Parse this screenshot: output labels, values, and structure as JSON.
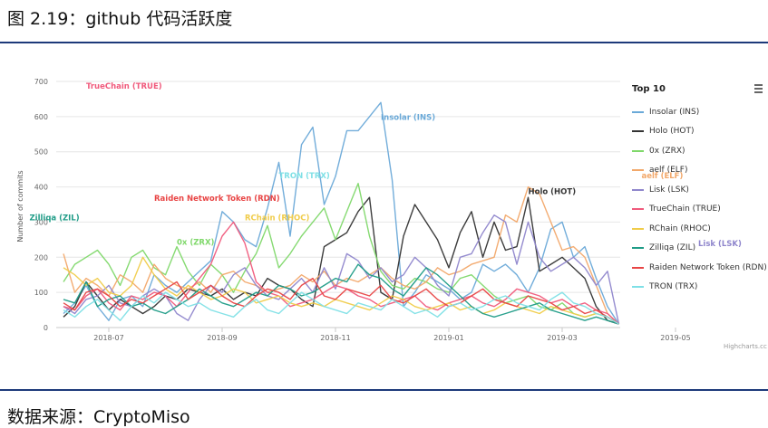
{
  "figure": {
    "title": "图 2.19：github 代码活跃度",
    "source": "数据来源：CryptoMiso",
    "credit": "Highcharts.cc"
  },
  "legend": {
    "title": "Top 10"
  },
  "chart_data": {
    "type": "line",
    "title": "",
    "xlabel": "",
    "ylabel": "Number of commits",
    "ylim": [
      0,
      700
    ],
    "yticks": [
      0,
      100,
      200,
      300,
      400,
      500,
      600,
      700
    ],
    "xlim": [
      0,
      49
    ],
    "xticks": [
      {
        "x": 4,
        "label": "2018-07"
      },
      {
        "x": 14,
        "label": "2018-09"
      },
      {
        "x": 24,
        "label": "2018-11"
      },
      {
        "x": 34,
        "label": "2019-01"
      },
      {
        "x": 44,
        "label": "2019-03"
      },
      {
        "x": 54,
        "label": "2019-05"
      }
    ],
    "grid": true,
    "legend_position": "right",
    "series": [
      {
        "name": "Insolar (INS)",
        "color": "#6aa9d8",
        "label": {
          "text": "Insolar (INS)",
          "at": [
            28,
            590
          ]
        },
        "values": [
          40,
          70,
          120,
          60,
          20,
          80,
          90,
          60,
          150,
          120,
          100,
          130,
          160,
          190,
          330,
          300,
          250,
          230,
          340,
          470,
          260,
          520,
          570,
          350,
          430,
          560,
          560,
          600,
          640,
          420,
          60,
          100,
          150,
          130,
          110,
          80,
          100,
          180,
          160,
          180,
          150,
          100,
          170,
          280,
          300,
          200,
          230,
          140,
          60,
          10
        ]
      },
      {
        "name": "Holo (HOT)",
        "color": "#333333",
        "label": {
          "text": "Holo (HOT)",
          "at": [
            41,
            380
          ]
        },
        "values": [
          30,
          60,
          130,
          90,
          50,
          80,
          60,
          40,
          60,
          90,
          80,
          110,
          100,
          90,
          110,
          80,
          100,
          90,
          140,
          120,
          110,
          80,
          60,
          230,
          250,
          270,
          330,
          370,
          100,
          80,
          260,
          350,
          300,
          250,
          170,
          270,
          330,
          200,
          300,
          220,
          230,
          370,
          160,
          180,
          200,
          170,
          140,
          60,
          20,
          10
        ]
      },
      {
        "name": "0x (ZRX)",
        "color": "#7fd86a",
        "label": {
          "text": "0x (ZRX)",
          "at": [
            10,
            235
          ]
        },
        "values": [
          130,
          180,
          200,
          220,
          180,
          120,
          200,
          220,
          170,
          150,
          230,
          160,
          120,
          180,
          150,
          100,
          160,
          210,
          290,
          170,
          210,
          260,
          300,
          340,
          250,
          330,
          410,
          260,
          160,
          120,
          110,
          140,
          130,
          110,
          100,
          140,
          150,
          120,
          90,
          70,
          80,
          90,
          60,
          50,
          70,
          40,
          30,
          40,
          30,
          10
        ]
      },
      {
        "name": "aelf (ELF)",
        "color": "#f2a86a",
        "label": {
          "text": "aelf (ELF)",
          "at": [
            51,
            425
          ]
        },
        "values": [
          210,
          100,
          140,
          120,
          90,
          150,
          130,
          100,
          180,
          140,
          120,
          110,
          130,
          100,
          150,
          160,
          130,
          120,
          100,
          110,
          120,
          150,
          130,
          160,
          120,
          140,
          130,
          150,
          170,
          140,
          120,
          110,
          130,
          170,
          150,
          160,
          180,
          190,
          200,
          320,
          300,
          400,
          380,
          300,
          220,
          230,
          200,
          120,
          40,
          10
        ]
      },
      {
        "name": "Lisk (LSK)",
        "color": "#8f86cc",
        "label": {
          "text": "Lisk (LSK)",
          "at": [
            56,
            232
          ]
        },
        "values": [
          60,
          40,
          80,
          90,
          120,
          70,
          60,
          90,
          110,
          90,
          40,
          20,
          80,
          120,
          100,
          150,
          170,
          120,
          90,
          80,
          110,
          140,
          100,
          170,
          110,
          210,
          190,
          140,
          170,
          130,
          150,
          200,
          170,
          120,
          90,
          200,
          210,
          270,
          320,
          300,
          180,
          300,
          200,
          160,
          180,
          200,
          170,
          120,
          160,
          10
        ]
      },
      {
        "name": "TrueChain (TRUE)",
        "color": "#f05a7c",
        "label": {
          "text": "TrueChain (TRUE)",
          "at": [
            2,
            680
          ]
        },
        "values": [
          60,
          50,
          90,
          110,
          70,
          50,
          90,
          80,
          100,
          90,
          60,
          100,
          140,
          180,
          260,
          300,
          240,
          130,
          100,
          90,
          60,
          70,
          80,
          100,
          120,
          110,
          90,
          80,
          60,
          70,
          80,
          90,
          60,
          50,
          70,
          80,
          90,
          70,
          60,
          80,
          110,
          100,
          90,
          70,
          80,
          60,
          70,
          50,
          40,
          10
        ]
      },
      {
        "name": "RChain (RHOC)",
        "color": "#f0cc4a",
        "label": {
          "text": "RChain (RHOC)",
          "at": [
            16,
            305
          ]
        },
        "values": [
          170,
          150,
          120,
          140,
          100,
          90,
          120,
          200,
          150,
          110,
          90,
          120,
          100,
          80,
          90,
          110,
          100,
          70,
          80,
          90,
          70,
          60,
          70,
          60,
          80,
          70,
          60,
          50,
          70,
          90,
          80,
          60,
          50,
          60,
          70,
          50,
          60,
          40,
          50,
          70,
          60,
          50,
          40,
          60,
          50,
          40,
          30,
          40,
          30,
          10
        ]
      },
      {
        "name": "Zilliqa (ZIL)",
        "color": "#1f9c87",
        "label": {
          "text": "Zilliqa (ZIL)",
          "at": [
            -3,
            305
          ]
        },
        "values": [
          80,
          70,
          130,
          60,
          80,
          90,
          60,
          70,
          50,
          40,
          60,
          80,
          110,
          90,
          70,
          60,
          80,
          100,
          90,
          120,
          110,
          90,
          100,
          120,
          140,
          130,
          180,
          150,
          140,
          110,
          90,
          130,
          170,
          150,
          120,
          90,
          60,
          40,
          30,
          40,
          50,
          60,
          70,
          50,
          40,
          30,
          20,
          30,
          20,
          10
        ]
      },
      {
        "name": "Raiden Network Token (RDN)",
        "color": "#e84545",
        "label": {
          "text": "Raiden Network Token (RDN)",
          "at": [
            8,
            360
          ]
        },
        "values": [
          70,
          50,
          100,
          110,
          90,
          60,
          80,
          70,
          90,
          110,
          130,
          80,
          100,
          120,
          90,
          70,
          60,
          90,
          110,
          100,
          80,
          120,
          140,
          90,
          80,
          110,
          100,
          90,
          120,
          80,
          70,
          90,
          110,
          80,
          60,
          70,
          90,
          110,
          80,
          70,
          60,
          90,
          80,
          70,
          50,
          60,
          40,
          50,
          30,
          10
        ]
      },
      {
        "name": "TRON (TRX)",
        "color": "#7fe0e6",
        "label": {
          "text": "TRON (TRX)",
          "at": [
            19,
            425
          ]
        },
        "values": [
          50,
          30,
          60,
          80,
          50,
          20,
          60,
          90,
          70,
          100,
          80,
          60,
          70,
          50,
          40,
          30,
          60,
          80,
          50,
          40,
          70,
          100,
          80,
          60,
          50,
          40,
          70,
          60,
          50,
          80,
          60,
          40,
          50,
          30,
          60,
          70,
          50,
          60,
          80,
          90,
          70,
          60,
          50,
          80,
          100,
          70,
          60,
          40,
          30,
          10
        ]
      }
    ]
  }
}
